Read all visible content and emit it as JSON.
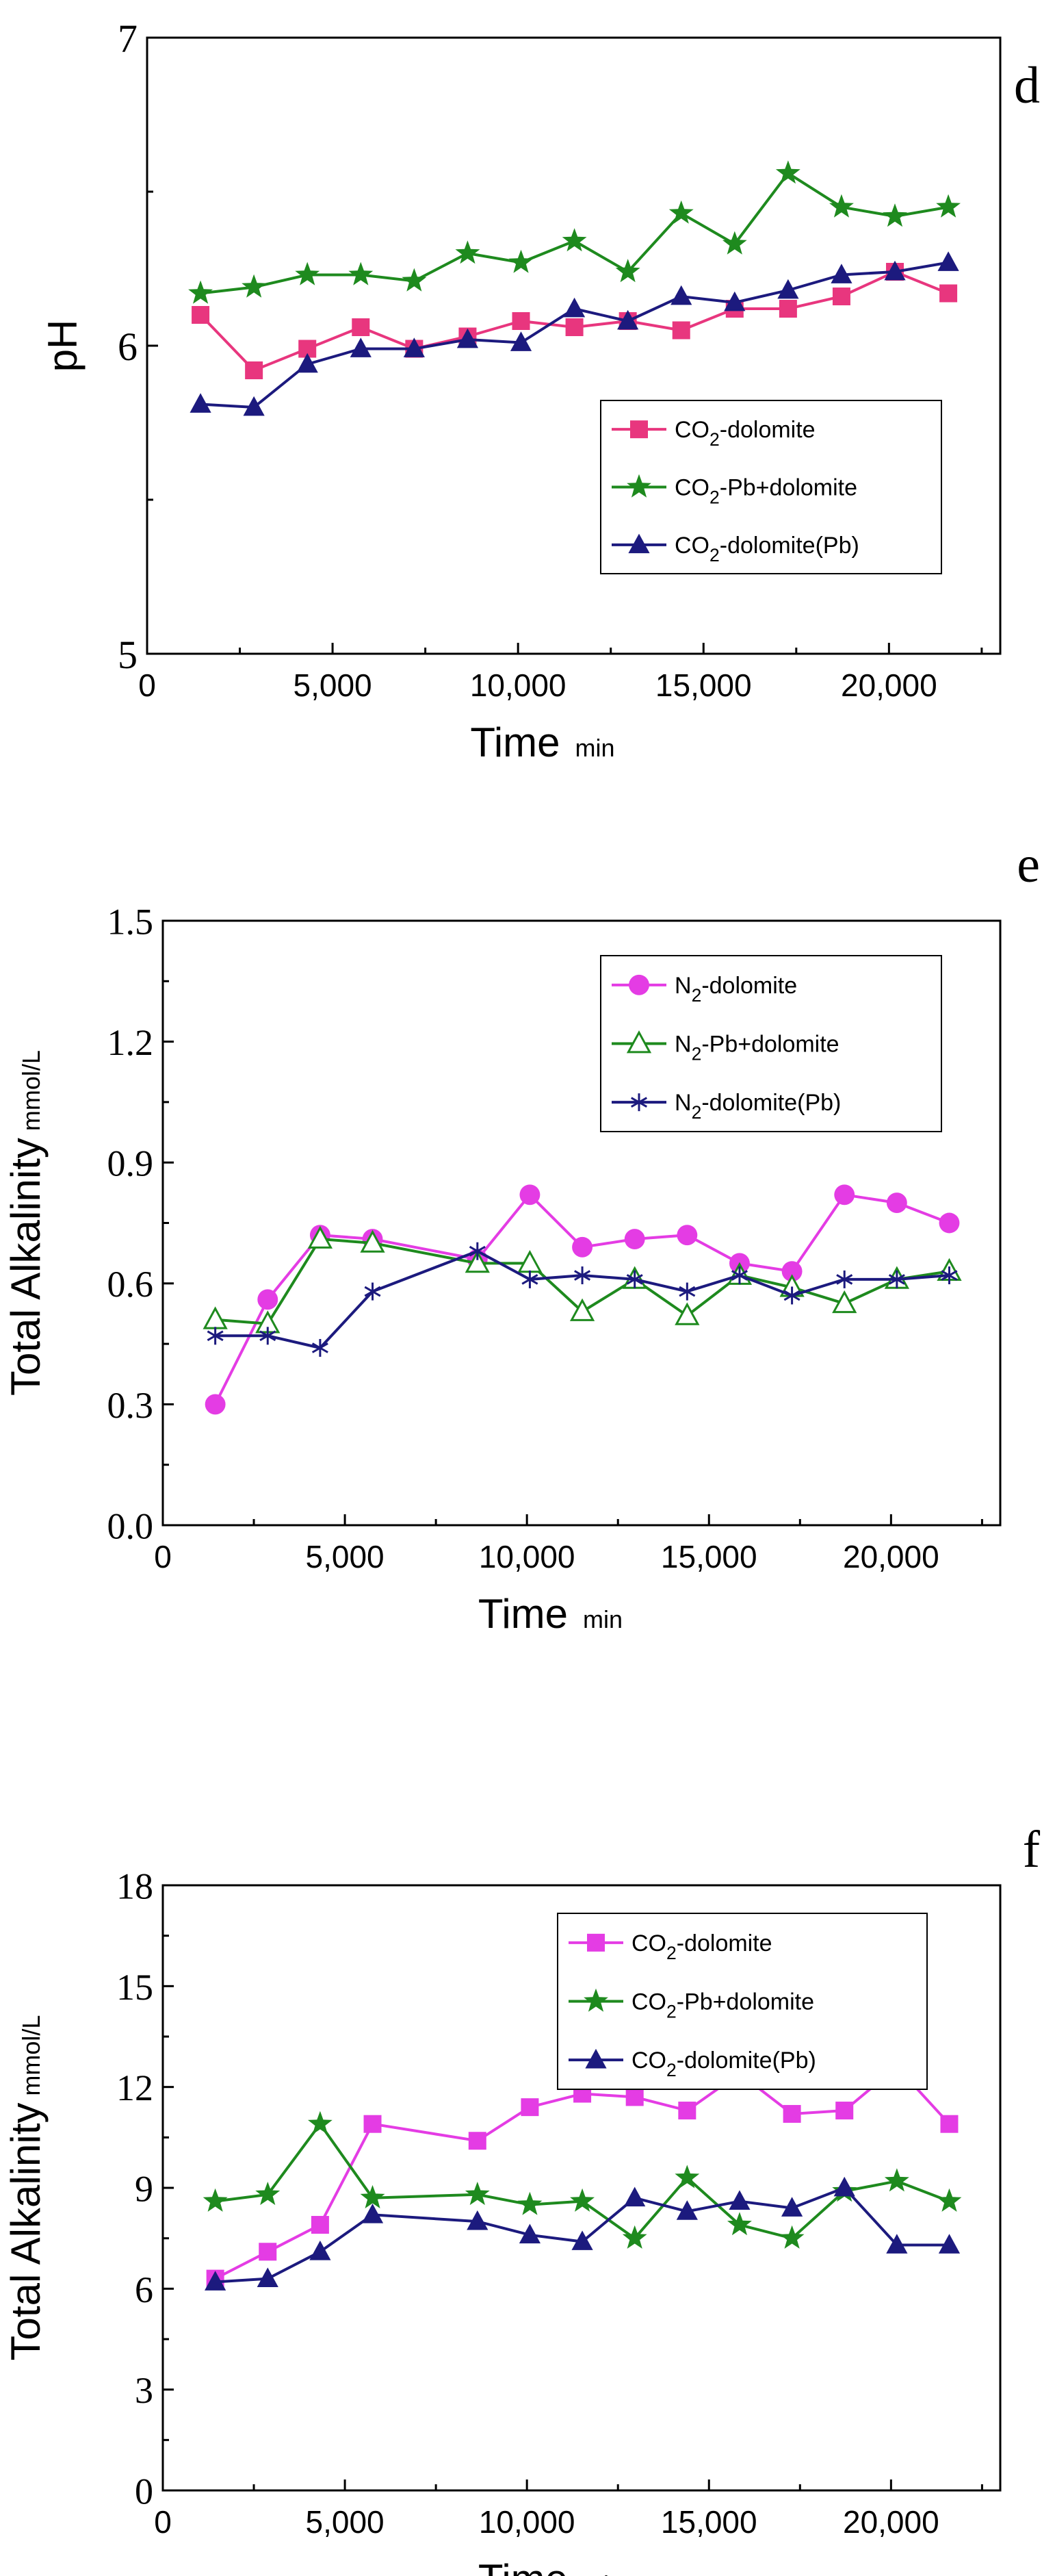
{
  "chart_data": [
    {
      "panel_label": "d",
      "type": "line",
      "title": "",
      "xlabel": "Time",
      "xunit": "min",
      "ylabel": "pH",
      "yunit": "",
      "xlim": [
        0,
        23000
      ],
      "ylim": [
        5,
        7
      ],
      "xticks": [
        0,
        5000,
        10000,
        15000,
        20000
      ],
      "xtick_labels": [
        "0",
        "5,000",
        "10,000",
        "15,000",
        "20,000"
      ],
      "yticks": [
        5,
        6,
        7
      ],
      "ytick_labels": [
        "5",
        "6",
        "7"
      ],
      "legend_position": "lower-right",
      "series": [
        {
          "name": "CO2-dolomite",
          "legend_parts": [
            "CO",
            "2",
            "-dolomite"
          ],
          "color": "#e8367e",
          "marker": "square",
          "x": [
            1440,
            2880,
            4320,
            5760,
            7200,
            8640,
            10080,
            11520,
            12960,
            14400,
            15840,
            17280,
            18720,
            20160,
            21600
          ],
          "y": [
            6.1,
            5.92,
            5.99,
            6.06,
            5.99,
            6.03,
            6.08,
            6.06,
            6.08,
            6.05,
            6.12,
            6.12,
            6.16,
            6.24,
            6.17
          ]
        },
        {
          "name": "CO2-Pb+dolomite",
          "legend_parts": [
            "CO",
            "2",
            "-Pb+dolomite"
          ],
          "color": "#1e8a1e",
          "marker": "star",
          "x": [
            1440,
            2880,
            4320,
            5760,
            7200,
            8640,
            10080,
            11520,
            12960,
            14400,
            15840,
            17280,
            18720,
            20160,
            21600
          ],
          "y": [
            6.17,
            6.19,
            6.23,
            6.23,
            6.21,
            6.3,
            6.27,
            6.34,
            6.24,
            6.43,
            6.33,
            6.56,
            6.45,
            6.42,
            6.45
          ]
        },
        {
          "name": "CO2-dolomite(Pb)",
          "legend_parts": [
            "CO",
            "2",
            "-dolomite(Pb)"
          ],
          "color": "#1c1a7e",
          "marker": "triangle",
          "x": [
            1440,
            2880,
            4320,
            5760,
            7200,
            8640,
            10080,
            11520,
            12960,
            14400,
            15840,
            17280,
            18720,
            20160,
            21600
          ],
          "y": [
            5.81,
            5.8,
            5.94,
            5.99,
            5.99,
            6.02,
            6.01,
            6.12,
            6.08,
            6.16,
            6.14,
            6.18,
            6.23,
            6.24,
            6.27
          ]
        }
      ]
    },
    {
      "panel_label": "e",
      "type": "line",
      "title": "",
      "xlabel": "Time",
      "xunit": "min",
      "ylabel": "Total Alkalinity",
      "yunit": "mmol/L",
      "xlim": [
        0,
        23000
      ],
      "ylim": [
        0,
        1.5
      ],
      "xticks": [
        0,
        5000,
        10000,
        15000,
        20000
      ],
      "xtick_labels": [
        "0",
        "5,000",
        "10,000",
        "15,000",
        "20,000"
      ],
      "yticks": [
        0,
        0.3,
        0.6,
        0.9,
        1.2,
        1.5
      ],
      "ytick_labels": [
        "0.0",
        "0.3",
        "0.6",
        "0.9",
        "1.2",
        "1.5"
      ],
      "legend_position": "top-right",
      "series": [
        {
          "name": "N2-dolomite",
          "legend_parts": [
            "N",
            "2",
            "-dolomite"
          ],
          "color": "#e43ce4",
          "marker": "circle",
          "x": [
            1440,
            2880,
            4320,
            5760,
            8640,
            10080,
            11520,
            12960,
            14400,
            15840,
            17280,
            18720,
            20160,
            21600
          ],
          "y": [
            0.3,
            0.56,
            0.72,
            0.71,
            0.66,
            0.82,
            0.69,
            0.71,
            0.72,
            0.65,
            0.63,
            0.82,
            0.8,
            0.75
          ]
        },
        {
          "name": "N2-Pb+dolomite",
          "legend_parts": [
            "N",
            "2",
            "-Pb+dolomite"
          ],
          "color": "#1e8a1e",
          "marker": "triangle-open",
          "x": [
            1440,
            2880,
            4320,
            5760,
            8640,
            10080,
            11520,
            12960,
            14400,
            15840,
            17280,
            18720,
            20160,
            21600
          ],
          "y": [
            0.51,
            0.5,
            0.71,
            0.7,
            0.65,
            0.65,
            0.53,
            0.61,
            0.52,
            0.62,
            0.59,
            0.55,
            0.61,
            0.63
          ]
        },
        {
          "name": "N2-dolomite(Pb)",
          "legend_parts": [
            "N",
            "2",
            "-dolomite(Pb)"
          ],
          "color": "#1c1a7e",
          "marker": "asterisk",
          "x": [
            1440,
            2880,
            4320,
            5760,
            8640,
            10080,
            11520,
            12960,
            14400,
            15840,
            17280,
            18720,
            20160,
            21600
          ],
          "y": [
            0.47,
            0.47,
            0.44,
            0.58,
            0.68,
            0.61,
            0.62,
            0.61,
            0.58,
            0.62,
            0.57,
            0.61,
            0.61,
            0.62
          ]
        }
      ]
    },
    {
      "panel_label": "f",
      "type": "line",
      "title": "",
      "xlabel": "Time",
      "xunit": "min",
      "ylabel": "Total Alkalinity",
      "yunit": "mmol/L",
      "xlim": [
        0,
        23000
      ],
      "ylim": [
        0,
        18
      ],
      "xticks": [
        0,
        5000,
        10000,
        15000,
        20000
      ],
      "xtick_labels": [
        "0",
        "5,000",
        "10,000",
        "15,000",
        "20,000"
      ],
      "yticks": [
        0,
        3,
        6,
        9,
        12,
        15,
        18
      ],
      "ytick_labels": [
        "0",
        "3",
        "6",
        "9",
        "12",
        "15",
        "18"
      ],
      "legend_position": "top-right",
      "series": [
        {
          "name": "CO2-dolomite",
          "legend_parts": [
            "CO",
            "2",
            "-dolomite"
          ],
          "color": "#e43ce4",
          "marker": "square",
          "x": [
            1440,
            2880,
            4320,
            5760,
            8640,
            10080,
            11520,
            12960,
            14400,
            15840,
            17280,
            18720,
            20160,
            21600
          ],
          "y": [
            6.3,
            7.1,
            7.9,
            10.9,
            10.4,
            11.4,
            11.8,
            11.7,
            11.3,
            12.4,
            11.2,
            11.3,
            12.6,
            10.9
          ]
        },
        {
          "name": "CO2-Pb+dolomite",
          "legend_parts": [
            "CO",
            "2",
            "-Pb+dolomite"
          ],
          "color": "#1e8a1e",
          "marker": "star",
          "x": [
            1440,
            2880,
            4320,
            5760,
            8640,
            10080,
            11520,
            12960,
            14400,
            15840,
            17280,
            18720,
            20160,
            21600
          ],
          "y": [
            8.6,
            8.8,
            10.9,
            8.7,
            8.8,
            8.5,
            8.6,
            7.5,
            9.3,
            7.9,
            7.5,
            8.9,
            9.2,
            8.6
          ]
        },
        {
          "name": "CO2-dolomite(Pb)",
          "legend_parts": [
            "CO",
            "2",
            "-dolomite(Pb)"
          ],
          "color": "#1c1a7e",
          "marker": "triangle",
          "x": [
            1440,
            2880,
            4320,
            5760,
            8640,
            10080,
            11520,
            12960,
            14400,
            15840,
            17280,
            18720,
            20160,
            21600
          ],
          "y": [
            6.2,
            6.3,
            7.1,
            8.2,
            8.0,
            7.6,
            7.4,
            8.7,
            8.3,
            8.6,
            8.4,
            9.0,
            7.3,
            7.3
          ]
        }
      ]
    }
  ]
}
